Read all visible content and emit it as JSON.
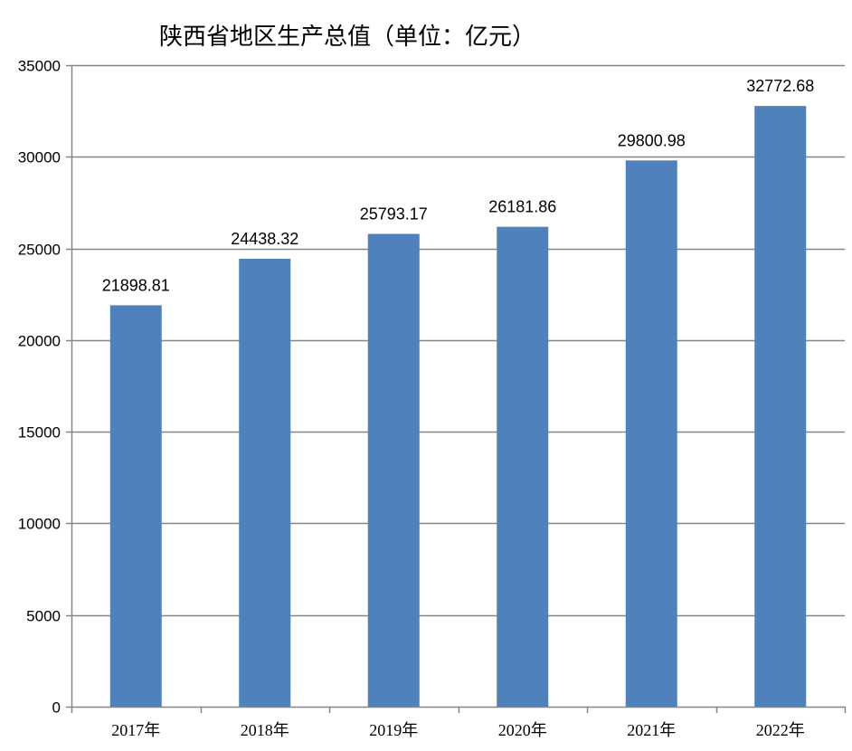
{
  "chart_data": {
    "type": "bar",
    "title": "陕西省地区生产总值（单位：亿元）",
    "categories": [
      "2017年",
      "2018年",
      "2019年",
      "2020年",
      "2021年",
      "2022年"
    ],
    "values": [
      21898.81,
      24438.32,
      25793.17,
      26181.86,
      29800.98,
      32772.68
    ],
    "data_labels": [
      "21898.81",
      "24438.32",
      "25793.17",
      "26181.86",
      "29800.98",
      "32772.68"
    ],
    "xlabel": "",
    "ylabel": "",
    "ylim": [
      0,
      35000
    ],
    "yticks": [
      0,
      5000,
      10000,
      15000,
      20000,
      25000,
      30000,
      35000
    ],
    "grid": true,
    "legend": "none",
    "bar_color": "#4f81bd"
  }
}
